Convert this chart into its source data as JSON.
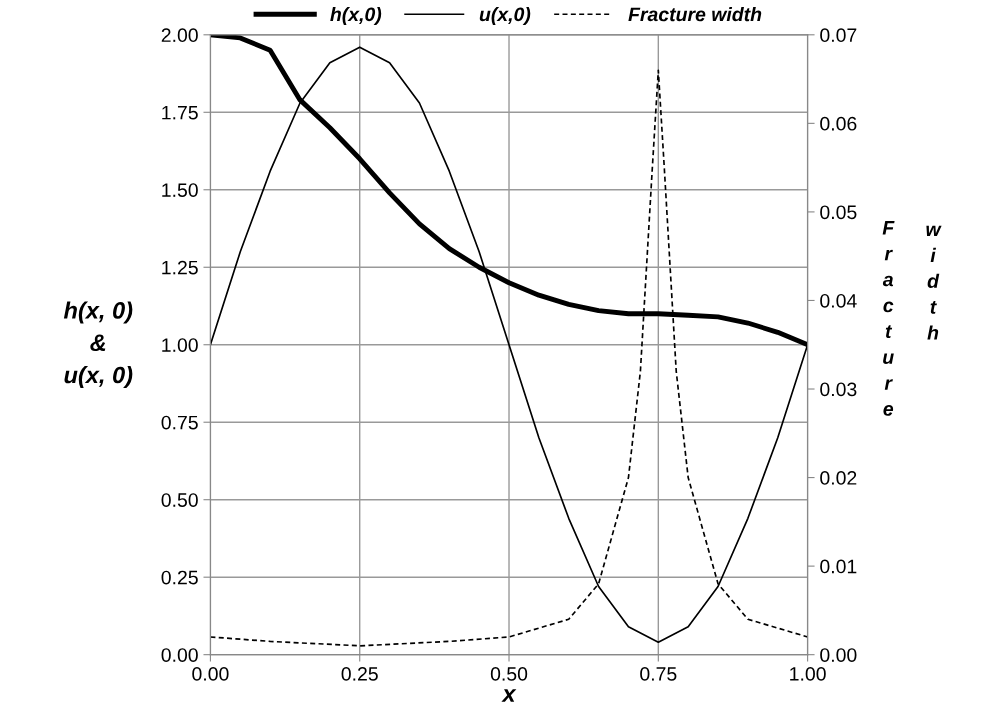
{
  "chart_data": {
    "type": "line",
    "xlabel": "x",
    "ylabel": "h(x, 0)\n&\nu(x, 0)",
    "y2label": "Fracture width",
    "xlim": [
      0,
      1
    ],
    "xticks": [
      {
        "value": 0,
        "label": "0.00"
      },
      {
        "value": 0.25,
        "label": "0.25"
      },
      {
        "value": 0.5,
        "label": "0.50"
      },
      {
        "value": 0.75,
        "label": "0.75"
      },
      {
        "value": 1,
        "label": "1.00"
      }
    ],
    "ylim": [
      0,
      2
    ],
    "yticks": [
      {
        "value": 0,
        "label": "0.00"
      },
      {
        "value": 0.25,
        "label": "0.25"
      },
      {
        "value": 0.5,
        "label": "0.50"
      },
      {
        "value": 0.75,
        "label": "0.75"
      },
      {
        "value": 1,
        "label": "1.00"
      },
      {
        "value": 1.25,
        "label": "1.25"
      },
      {
        "value": 1.5,
        "label": "1.50"
      },
      {
        "value": 1.75,
        "label": "1.75"
      },
      {
        "value": 2,
        "label": "2.00"
      }
    ],
    "y2lim": [
      0,
      0.07
    ],
    "y2ticks": [
      {
        "value": 0,
        "label": "0.00"
      },
      0.01,
      0.02,
      0.03,
      0.04,
      0.05,
      0.06,
      0.07
    ],
    "grid": true,
    "legend": "top",
    "series": [
      {
        "name": "h(x,0)",
        "color": "#000000",
        "line_style": "solid",
        "x": [
          0,
          0.05,
          0.1,
          0.15,
          0.2,
          0.25,
          0.3,
          0.35,
          0.4,
          0.45,
          0.5,
          0.55,
          0.6,
          0.65,
          0.7,
          0.75,
          0.8,
          0.85,
          0.9,
          0.95,
          1
        ],
        "values": [
          2.0,
          1.99,
          1.95,
          1.79,
          1.7,
          1.6,
          1.49,
          1.39,
          1.31,
          1.25,
          1.2,
          1.16,
          1.13,
          1.11,
          1.1,
          1.1,
          1.095,
          1.09,
          1.07,
          1.04,
          1.0
        ]
      },
      {
        "name": "u(x,0)",
        "color": "#000000",
        "line_style": "solid",
        "x": [
          0,
          0.05,
          0.1,
          0.15,
          0.2,
          0.25,
          0.3,
          0.35,
          0.4,
          0.45,
          0.5,
          0.55,
          0.6,
          0.65,
          0.7,
          0.75,
          0.8,
          0.85,
          0.9,
          0.95,
          1
        ],
        "values": [
          1.0,
          1.3,
          1.56,
          1.78,
          1.91,
          1.96,
          1.91,
          1.78,
          1.56,
          1.3,
          1.0,
          0.7,
          0.44,
          0.22,
          0.09,
          0.04,
          0.09,
          0.22,
          0.44,
          0.7,
          1.0
        ]
      },
      {
        "name": "Fracture width",
        "color": "#000000",
        "line_style": "dashed",
        "axis": "y2",
        "x": [
          0,
          0.1,
          0.25,
          0.4,
          0.5,
          0.6,
          0.65,
          0.7,
          0.72,
          0.74,
          0.75,
          0.76,
          0.78,
          0.8,
          0.85,
          0.9,
          1
        ],
        "values": [
          0.002,
          0.0015,
          0.001,
          0.0015,
          0.002,
          0.004,
          0.008,
          0.02,
          0.032,
          0.055,
          0.066,
          0.055,
          0.032,
          0.02,
          0.008,
          0.004,
          0.002
        ]
      }
    ]
  }
}
